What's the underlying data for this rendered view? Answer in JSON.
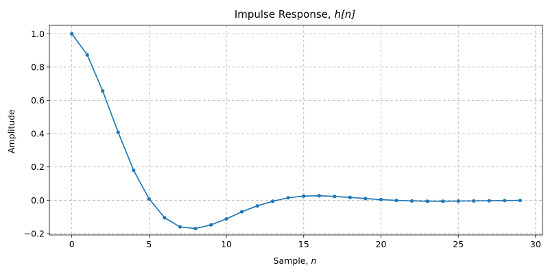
{
  "chart_data": {
    "type": "line",
    "title_prefix": "Impulse Response, ",
    "title_math": "h[n]",
    "xlabel_prefix": "Sample, ",
    "xlabel_math": "n",
    "ylabel": "Amplitude",
    "xlim": [
      -1.45,
      30.45
    ],
    "ylim": [
      -0.2085,
      1.0505
    ],
    "xticks": [
      0,
      5,
      10,
      15,
      20,
      25,
      30
    ],
    "xtick_labels": [
      "0",
      "5",
      "10",
      "15",
      "20",
      "25",
      "30"
    ],
    "yticks": [
      -0.2,
      0.0,
      0.2,
      0.4,
      0.6,
      0.8,
      1.0
    ],
    "ytick_labels": [
      "−0.2",
      "0.0",
      "0.2",
      "0.4",
      "0.6",
      "0.8",
      "1.0"
    ],
    "grid": true,
    "series": [
      {
        "color": "#1f77b4",
        "marker": "circle",
        "x": [
          0,
          1,
          2,
          3,
          4,
          5,
          6,
          7,
          8,
          9,
          10,
          11,
          12,
          13,
          14,
          15,
          16,
          17,
          18,
          19,
          20,
          21,
          22,
          23,
          24,
          25,
          26,
          27,
          28,
          29
        ],
        "y": [
          1.0,
          0.873,
          0.656,
          0.408,
          0.18,
          0.008,
          -0.105,
          -0.16,
          -0.17,
          -0.148,
          -0.112,
          -0.069,
          -0.034,
          -0.006,
          0.015,
          0.025,
          0.027,
          0.023,
          0.017,
          0.01,
          0.004,
          -0.001,
          -0.004,
          -0.006,
          -0.006,
          -0.005,
          -0.004,
          -0.003,
          -0.002,
          -0.001
        ]
      }
    ]
  }
}
